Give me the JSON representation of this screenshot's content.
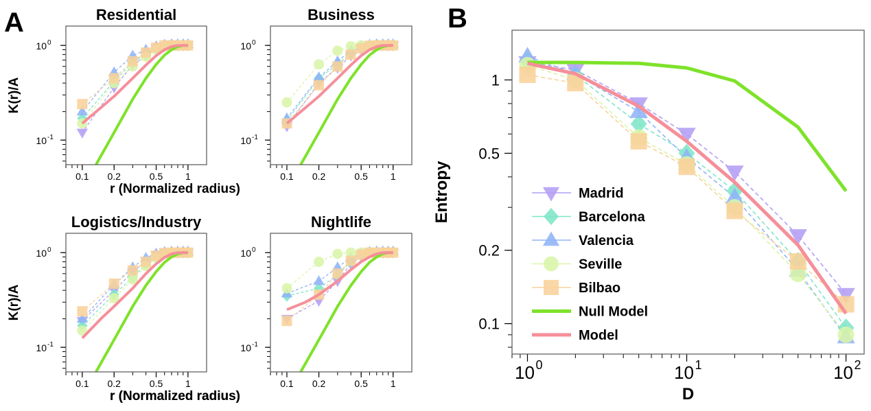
{
  "panel_letters": {
    "a": "A",
    "b": "B"
  },
  "colors": {
    "Madrid": "#b39ef5",
    "Barcelona": "#7fe6c7",
    "Valencia": "#8fb4f7",
    "Seville": "#d9f5a8",
    "Bilbao": "#f9d29a",
    "Null Model": "#7ee22a",
    "Model": "#f58f9a"
  },
  "chart_data": [
    {
      "type": "line",
      "title": "Residential",
      "xlabel": "r (Normalized radius)",
      "ylabel": "K(r)/A",
      "xscale": "log",
      "yscale": "log",
      "xlim": [
        0.07,
        1.5
      ],
      "ylim": [
        0.055,
        1.6
      ],
      "xticks": [
        0.1,
        0.2,
        0.5,
        1
      ],
      "xtick_labels": [
        "0.1",
        "0.2",
        "0.5",
        "1"
      ],
      "yticks": [
        0.1,
        1
      ],
      "x": [
        0.1,
        0.2,
        0.3,
        0.4,
        0.5,
        0.6,
        0.7,
        0.8,
        0.9,
        1.0
      ],
      "series": [
        {
          "name": "Madrid",
          "marker": "triangle-down",
          "values": [
            0.12,
            0.36,
            0.62,
            0.78,
            0.92,
            0.98,
            1.0,
            1.0,
            1.0,
            1.0
          ]
        },
        {
          "name": "Barcelona",
          "marker": "diamond",
          "values": [
            0.17,
            0.42,
            0.66,
            0.82,
            0.93,
            0.99,
            1.0,
            1.0,
            1.0,
            1.0
          ]
        },
        {
          "name": "Valencia",
          "marker": "triangle-up",
          "values": [
            0.2,
            0.52,
            0.78,
            0.9,
            0.98,
            1.02,
            1.03,
            1.03,
            1.03,
            1.03
          ]
        },
        {
          "name": "Seville",
          "marker": "circle",
          "values": [
            0.15,
            0.4,
            0.6,
            0.76,
            0.9,
            0.97,
            1.0,
            1.0,
            1.0,
            1.0
          ]
        },
        {
          "name": "Bilbao",
          "marker": "square",
          "values": [
            0.24,
            0.45,
            0.68,
            0.84,
            0.95,
            1.0,
            1.0,
            1.0,
            1.0,
            1.0
          ]
        }
      ],
      "model": {
        "x": [
          0.1,
          0.15,
          0.2,
          0.3,
          0.4,
          0.5,
          0.6,
          0.7,
          0.8,
          1.0
        ],
        "values": [
          0.15,
          0.22,
          0.29,
          0.45,
          0.62,
          0.78,
          0.9,
          0.97,
          1.0,
          1.0
        ]
      },
      "null_model": {
        "x": [
          0.135,
          0.2,
          0.3,
          0.4,
          0.5,
          0.6,
          0.7,
          0.8,
          0.9,
          1.0
        ],
        "values": [
          0.055,
          0.12,
          0.27,
          0.45,
          0.63,
          0.79,
          0.9,
          0.97,
          1.0,
          1.0
        ]
      }
    },
    {
      "type": "line",
      "title": "Business",
      "xlabel": "",
      "ylabel": "",
      "xscale": "log",
      "yscale": "log",
      "xlim": [
        0.07,
        1.5
      ],
      "ylim": [
        0.055,
        1.6
      ],
      "xticks": [
        0.1,
        0.2,
        0.5,
        1
      ],
      "xtick_labels": [
        "0.1",
        "0.2",
        "0.5",
        "1"
      ],
      "yticks": [
        0.1,
        1
      ],
      "x": [
        0.1,
        0.2,
        0.3,
        0.4,
        0.5,
        0.6,
        0.7,
        0.8,
        0.9,
        1.0
      ],
      "series": [
        {
          "name": "Madrid",
          "marker": "triangle-down",
          "values": [
            0.14,
            0.4,
            0.58,
            0.78,
            0.92,
            0.99,
            1.0,
            1.0,
            1.0,
            1.0
          ]
        },
        {
          "name": "Barcelona",
          "marker": "diamond",
          "values": [
            0.16,
            0.45,
            0.63,
            0.83,
            0.95,
            1.0,
            1.0,
            1.0,
            1.0,
            1.0
          ]
        },
        {
          "name": "Valencia",
          "marker": "triangle-up",
          "values": [
            0.17,
            0.46,
            0.68,
            0.88,
            0.98,
            1.02,
            1.03,
            1.03,
            1.03,
            1.03
          ]
        },
        {
          "name": "Seville",
          "marker": "circle",
          "values": [
            0.25,
            0.63,
            0.88,
            0.98,
            1.0,
            1.0,
            1.0,
            1.0,
            1.0,
            1.0
          ]
        },
        {
          "name": "Bilbao",
          "marker": "square",
          "values": [
            0.15,
            0.38,
            0.6,
            0.8,
            0.93,
            0.99,
            1.0,
            1.0,
            1.0,
            1.0
          ]
        }
      ],
      "model": {
        "x": [
          0.1,
          0.15,
          0.2,
          0.3,
          0.4,
          0.5,
          0.6,
          0.7,
          0.8,
          1.0
        ],
        "values": [
          0.15,
          0.22,
          0.29,
          0.45,
          0.62,
          0.78,
          0.9,
          0.97,
          1.0,
          1.0
        ]
      },
      "null_model": {
        "x": [
          0.135,
          0.2,
          0.3,
          0.4,
          0.5,
          0.6,
          0.7,
          0.8,
          0.9,
          1.0
        ],
        "values": [
          0.055,
          0.12,
          0.27,
          0.45,
          0.63,
          0.79,
          0.9,
          0.97,
          1.0,
          1.0
        ]
      }
    },
    {
      "type": "line",
      "title": "Logistics/Industry",
      "xlabel": "r (Normalized radius)",
      "ylabel": "K(r)/A",
      "xscale": "log",
      "yscale": "log",
      "xlim": [
        0.07,
        1.5
      ],
      "ylim": [
        0.055,
        1.6
      ],
      "xticks": [
        0.1,
        0.2,
        0.5,
        1
      ],
      "xtick_labels": [
        "0.1",
        "0.2",
        "0.5",
        "1"
      ],
      "yticks": [
        0.1,
        1
      ],
      "x": [
        0.1,
        0.2,
        0.3,
        0.4,
        0.5,
        0.6,
        0.7,
        0.8,
        0.9,
        1.0
      ],
      "series": [
        {
          "name": "Madrid",
          "marker": "triangle-down",
          "values": [
            0.19,
            0.4,
            0.62,
            0.82,
            0.95,
            1.0,
            1.0,
            1.0,
            1.0,
            1.0
          ]
        },
        {
          "name": "Barcelona",
          "marker": "diamond",
          "values": [
            0.17,
            0.36,
            0.55,
            0.75,
            0.9,
            0.98,
            1.0,
            1.0,
            1.0,
            1.0
          ]
        },
        {
          "name": "Valencia",
          "marker": "triangle-up",
          "values": [
            0.2,
            0.46,
            0.7,
            0.88,
            0.98,
            1.02,
            1.03,
            1.03,
            1.03,
            1.03
          ]
        },
        {
          "name": "Seville",
          "marker": "circle",
          "values": [
            0.15,
            0.33,
            0.52,
            0.72,
            0.88,
            0.97,
            1.0,
            1.0,
            1.0,
            1.0
          ]
        },
        {
          "name": "Bilbao",
          "marker": "square",
          "values": [
            0.24,
            0.47,
            0.65,
            0.8,
            0.93,
            0.99,
            1.0,
            1.0,
            1.0,
            1.0
          ]
        }
      ],
      "model": {
        "x": [
          0.1,
          0.15,
          0.2,
          0.3,
          0.4,
          0.5,
          0.6,
          0.7,
          0.8,
          1.0
        ],
        "values": [
          0.125,
          0.2,
          0.27,
          0.42,
          0.6,
          0.76,
          0.89,
          0.97,
          1.0,
          1.0
        ]
      },
      "null_model": {
        "x": [
          0.135,
          0.2,
          0.3,
          0.4,
          0.5,
          0.6,
          0.7,
          0.8,
          0.9,
          1.0
        ],
        "values": [
          0.055,
          0.12,
          0.27,
          0.45,
          0.63,
          0.79,
          0.9,
          0.97,
          1.0,
          1.0
        ]
      }
    },
    {
      "type": "line",
      "title": "Nightlife",
      "xlabel": "r (Normalized radius)",
      "ylabel": "",
      "xscale": "log",
      "yscale": "log",
      "xlim": [
        0.07,
        1.5
      ],
      "ylim": [
        0.055,
        1.6
      ],
      "xticks": [
        0.1,
        0.2,
        0.5,
        1
      ],
      "xtick_labels": [
        "0.1",
        "0.2",
        "0.5",
        "1"
      ],
      "yticks": [
        0.1,
        1
      ],
      "x": [
        0.1,
        0.2,
        0.3,
        0.4,
        0.5,
        0.6,
        0.7,
        0.8,
        0.9,
        1.0
      ],
      "series": [
        {
          "name": "Madrid",
          "marker": "triangle-down",
          "values": [
            0.2,
            0.31,
            0.5,
            0.76,
            0.92,
            0.99,
            1.0,
            1.0,
            1.0,
            1.0
          ]
        },
        {
          "name": "Barcelona",
          "marker": "diamond",
          "values": [
            0.35,
            0.42,
            0.58,
            0.8,
            0.95,
            1.0,
            1.0,
            1.0,
            1.0,
            1.0
          ]
        },
        {
          "name": "Valencia",
          "marker": "triangle-up",
          "values": [
            0.37,
            0.5,
            0.7,
            0.88,
            0.98,
            1.02,
            1.03,
            1.03,
            1.03,
            1.03
          ]
        },
        {
          "name": "Seville",
          "marker": "circle",
          "values": [
            0.42,
            0.8,
            0.97,
            1.0,
            1.0,
            1.0,
            1.0,
            1.0,
            1.0,
            1.0
          ]
        },
        {
          "name": "Bilbao",
          "marker": "square",
          "values": [
            0.19,
            0.36,
            0.6,
            0.82,
            0.95,
            1.0,
            1.0,
            1.0,
            1.0,
            1.0
          ]
        }
      ],
      "model": {
        "x": [
          0.1,
          0.15,
          0.2,
          0.3,
          0.4,
          0.5,
          0.6,
          0.7,
          0.8,
          1.0
        ],
        "values": [
          0.25,
          0.3,
          0.36,
          0.5,
          0.66,
          0.8,
          0.9,
          0.97,
          1.0,
          1.0
        ]
      },
      "null_model": {
        "x": [
          0.135,
          0.2,
          0.3,
          0.4,
          0.5,
          0.6,
          0.7,
          0.8,
          0.9,
          1.0
        ],
        "values": [
          0.055,
          0.12,
          0.27,
          0.45,
          0.63,
          0.79,
          0.9,
          0.97,
          1.0,
          1.0
        ]
      }
    },
    {
      "type": "line",
      "title": "",
      "xlabel": "D",
      "ylabel": "Entropy",
      "xscale": "log",
      "yscale": "log",
      "xlim": [
        0.8,
        130
      ],
      "ylim": [
        0.075,
        1.6
      ],
      "xticks": [
        1,
        10,
        100
      ],
      "xtick_bases": [
        "10",
        "10",
        "10"
      ],
      "xtick_exps": [
        "0",
        "1",
        "2"
      ],
      "yticks": [
        0.1,
        0.2,
        0.5,
        1
      ],
      "ytick_labels": [
        "0.1",
        "0.2",
        "0.5",
        "1"
      ],
      "x": [
        1,
        2,
        5,
        10,
        20,
        50,
        100
      ],
      "series": [
        {
          "name": "Madrid",
          "marker": "triangle-down",
          "values": [
            1.18,
            1.1,
            0.8,
            0.6,
            0.42,
            0.23,
            0.132
          ]
        },
        {
          "name": "Barcelona",
          "marker": "diamond",
          "values": [
            1.2,
            1.05,
            0.66,
            0.5,
            0.35,
            0.18,
            0.096
          ]
        },
        {
          "name": "Valencia",
          "marker": "triangle-up",
          "values": [
            1.25,
            1.06,
            0.74,
            0.48,
            0.33,
            0.165,
            0.088
          ]
        },
        {
          "name": "Seville",
          "marker": "circle",
          "values": [
            1.15,
            1.0,
            0.58,
            0.45,
            0.3,
            0.16,
            0.09
          ]
        },
        {
          "name": "Bilbao",
          "marker": "square",
          "values": [
            1.05,
            0.97,
            0.56,
            0.44,
            0.29,
            0.18,
            0.12
          ]
        }
      ],
      "model": {
        "x": [
          1,
          2,
          5,
          10,
          20,
          50,
          100
        ],
        "values": [
          1.17,
          1.06,
          0.78,
          0.56,
          0.38,
          0.21,
          0.11
        ]
      },
      "null_model": {
        "x": [
          1,
          2,
          5,
          10,
          20,
          50,
          100
        ],
        "values": [
          1.18,
          1.18,
          1.17,
          1.12,
          0.99,
          0.64,
          0.35
        ]
      },
      "legend": {
        "placement": "bottom-left",
        "entries": [
          "Madrid",
          "Barcelona",
          "Valencia",
          "Seville",
          "Bilbao",
          "Null Model",
          "Model"
        ]
      }
    }
  ]
}
